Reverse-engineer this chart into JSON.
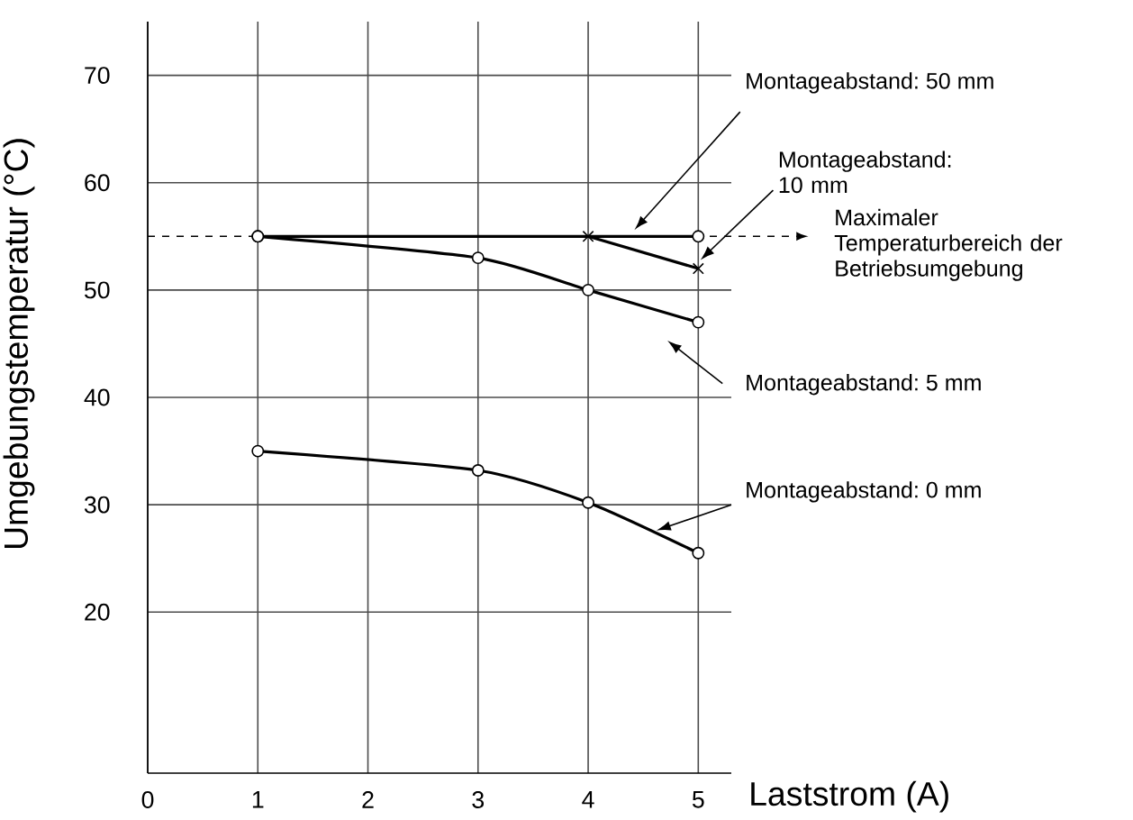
{
  "chart_data": {
    "type": "line",
    "xlabel": "Laststrom (A)",
    "ylabel": "Umgebungstemperatur (°C)",
    "xlim": [
      0,
      5.3
    ],
    "xticks": [
      0,
      1,
      2,
      3,
      4,
      5
    ],
    "ylim": [
      5,
      75
    ],
    "yticks": [
      20,
      30,
      40,
      50,
      60,
      70
    ],
    "grid": true,
    "line_style": "solid",
    "series": [
      {
        "name": "Montageabstand: 50 mm",
        "color": "#000000",
        "x": [
          1,
          5
        ],
        "values": [
          55,
          55
        ],
        "marker": "circle"
      },
      {
        "name": "Montageabstand: 10 mm",
        "color": "#000000",
        "x": [
          4,
          5
        ],
        "values": [
          55,
          52
        ],
        "marker": "cross"
      },
      {
        "name": "Montageabstand: 5 mm",
        "color": "#000000",
        "x": [
          1,
          3,
          4,
          5
        ],
        "values": [
          55,
          53,
          50,
          47
        ],
        "marker": "circle"
      },
      {
        "name": "Montageabstand: 0 mm",
        "color": "#000000",
        "x": [
          1,
          3,
          4,
          5
        ],
        "values": [
          35,
          33.2,
          30.2,
          25.5
        ],
        "marker": "circle"
      }
    ],
    "ref_lines": [
      {
        "axis": "y",
        "value": 55,
        "label": "Maximaler Temperaturbereich der Betriebsumgebung",
        "line_style": "dashed",
        "color": "#000000"
      }
    ]
  }
}
